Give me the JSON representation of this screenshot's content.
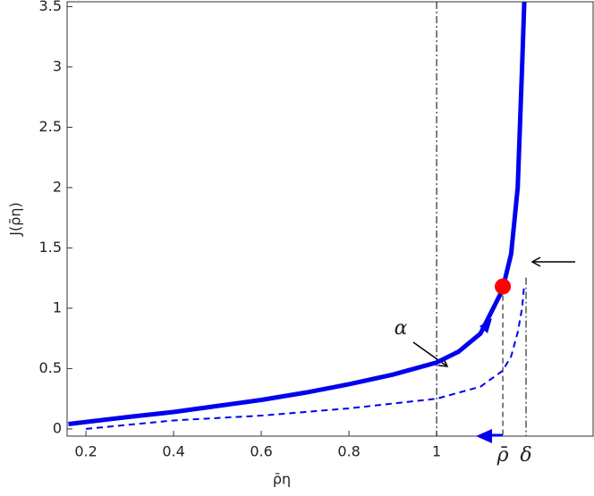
{
  "chart_data": {
    "type": "line",
    "x_label": "ρ̄η",
    "y_label": "J(ρ̄η)",
    "xlim": [
      0.157,
      1.357
    ],
    "ylim": [
      -0.06,
      3.54
    ],
    "xticks": [
      0.2,
      0.4,
      0.6,
      0.8,
      1
    ],
    "yticks": [
      0,
      0.5,
      1,
      1.5,
      2,
      2.5,
      3,
      3.5
    ],
    "series": [
      {
        "color": "#0000ee",
        "style": "solid",
        "x": [
          0.16,
          0.3,
          0.4,
          0.5,
          0.6,
          0.7,
          0.8,
          0.9,
          1.0,
          1.05,
          1.1,
          1.15,
          1.17,
          1.185,
          1.195,
          1.2
        ],
        "values": [
          0.04,
          0.1,
          0.14,
          0.19,
          0.24,
          0.3,
          0.37,
          0.45,
          0.55,
          0.64,
          0.79,
          1.15,
          1.45,
          2.0,
          3.0,
          3.54
        ]
      },
      {
        "color": "#0000ee",
        "style": "dashed",
        "x": [
          0.2,
          0.4,
          0.6,
          0.8,
          1.0,
          1.1,
          1.15,
          1.17,
          1.185,
          1.195,
          1.2
        ],
        "values": [
          0.0,
          0.07,
          0.11,
          0.17,
          0.25,
          0.35,
          0.48,
          0.6,
          0.8,
          1.0,
          1.2
        ]
      }
    ],
    "point": {
      "x": 1.151,
      "y": 1.18,
      "color": "#ff0000"
    },
    "vlines": [
      1
    ],
    "markers": [
      {
        "label": "ρ̄",
        "x": 1.151
      },
      {
        "label": "δ",
        "x": 1.204
      }
    ],
    "annotation": "α"
  }
}
